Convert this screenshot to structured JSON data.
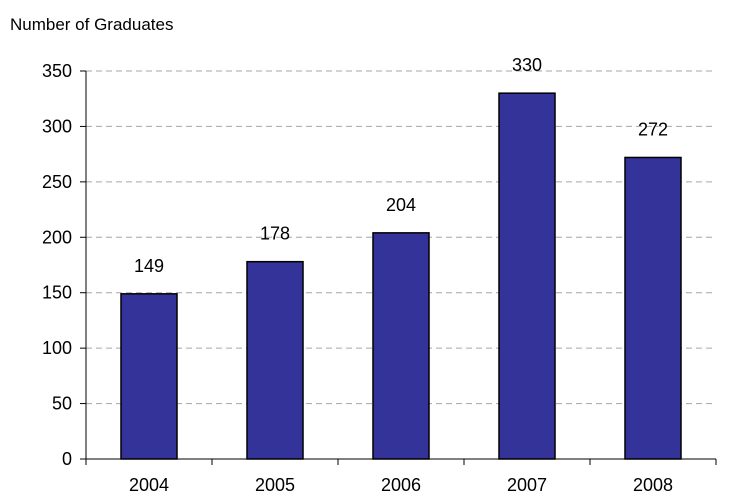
{
  "chart_data": {
    "type": "bar",
    "categories": [
      "2004",
      "2005",
      "2006",
      "2007",
      "2008"
    ],
    "values": [
      149,
      178,
      204,
      330,
      272
    ],
    "data_labels": [
      "149",
      "178",
      "204",
      "330",
      "272"
    ],
    "title": "",
    "xlabel": "",
    "ylabel": "Number of Graduates",
    "ylim": [
      0,
      350
    ],
    "yticks": [
      "0",
      "50",
      "100",
      "150",
      "200",
      "250",
      "300",
      "350"
    ],
    "grid": "horizontal dashed",
    "legend": "none",
    "colors": {
      "bar_fill": "#333399",
      "bar_stroke": "#000000",
      "grid": "#a6a6a6",
      "axis": "#000000"
    }
  }
}
